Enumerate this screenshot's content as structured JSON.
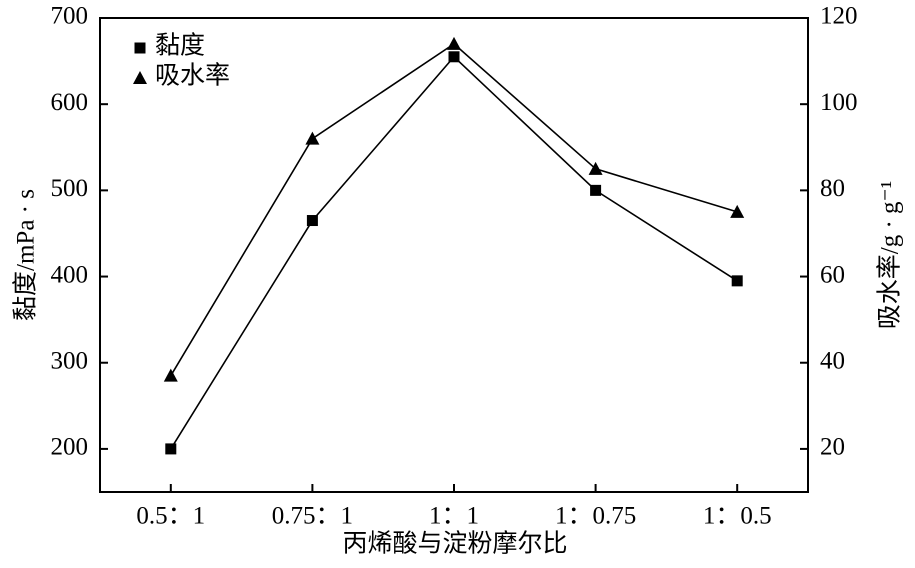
{
  "chart_data": {
    "type": "line",
    "x_label": "丙烯酸与淀粉摩尔比",
    "y_label": "黏度/mPa · s",
    "y2_label": "吸水率/g · g⁻¹",
    "categories": [
      "0.5：1",
      "0.75：1",
      "1：1",
      "1：0.75",
      "1：0.5"
    ],
    "series": [
      {
        "name": "黏度",
        "color": "#000000",
        "marker": "square",
        "values": [
          200,
          465,
          655,
          500,
          395
        ]
      },
      {
        "name": "吸水率",
        "color": "#000000",
        "marker": "triangle",
        "axis": "y2",
        "values": [
          37,
          92,
          114,
          85,
          75
        ]
      }
    ],
    "ylim": [
      150,
      700
    ],
    "yticks": [
      200,
      300,
      400,
      500,
      600,
      700
    ],
    "y2lim": [
      10,
      120
    ],
    "y2ticks": [
      20,
      40,
      60,
      80,
      100,
      120
    ],
    "legend": "upper left"
  }
}
